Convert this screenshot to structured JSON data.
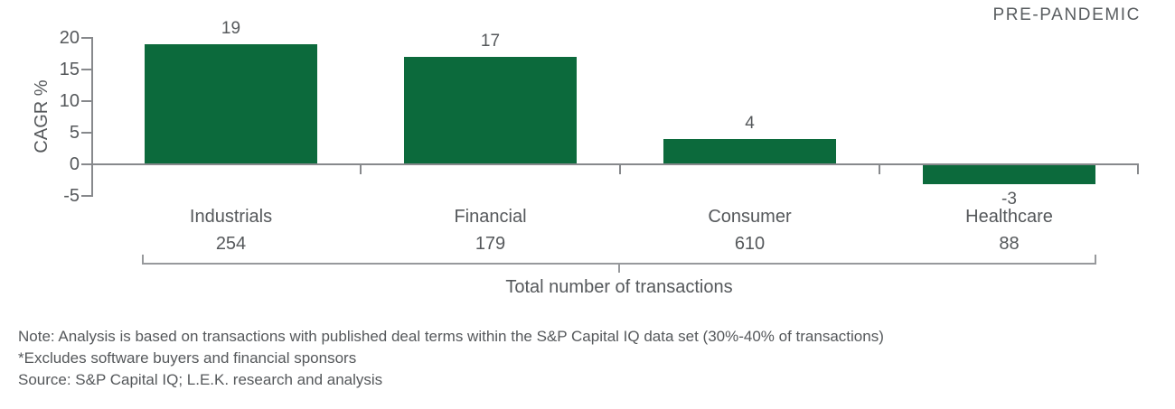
{
  "header": {
    "tag": "PRE-PANDEMIC"
  },
  "chart_data": {
    "type": "bar",
    "categories": [
      "Industrials",
      "Financial",
      "Consumer",
      "Healthcare"
    ],
    "values": [
      19,
      17,
      4,
      -3
    ],
    "counts": [
      254,
      179,
      610,
      88
    ],
    "ylabel": "CAGR %",
    "xlabel": "Total number of transactions",
    "ylim": [
      -5,
      20
    ],
    "yticks": [
      20,
      15,
      10,
      5,
      0,
      -5
    ],
    "bar_color": "#0c6a3c",
    "axis_color": "#87898c",
    "text_color": "#55585b",
    "grid": false,
    "legend_position": "none"
  },
  "notes": [
    "Note: Analysis is based on transactions with published deal terms within the S&P Capital IQ data set (30%-40% of transactions)",
    "*Excludes software buyers and financial sponsors",
    "Source: S&P Capital IQ; L.E.K. research and analysis"
  ]
}
